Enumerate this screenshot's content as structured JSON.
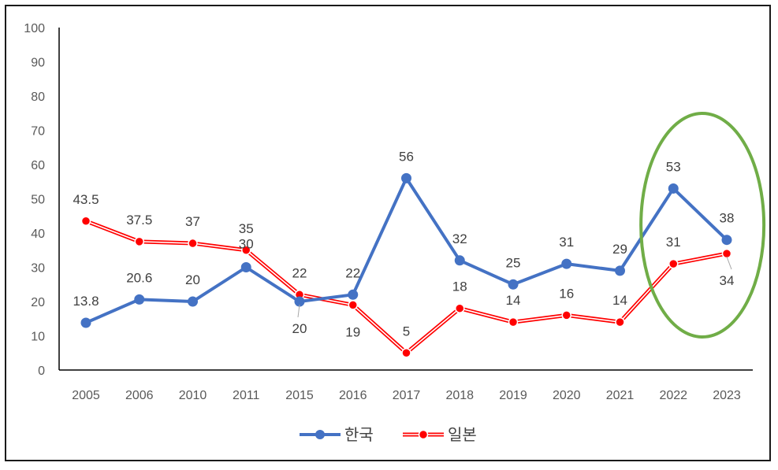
{
  "chart_data": {
    "type": "line",
    "categories": [
      "2005",
      "2006",
      "2010",
      "2011",
      "2015",
      "2016",
      "2017",
      "2018",
      "2019",
      "2020",
      "2021",
      "2022",
      "2023"
    ],
    "ylim": [
      0,
      100
    ],
    "yticks": [
      0,
      10,
      20,
      30,
      40,
      50,
      60,
      70,
      80,
      90,
      100
    ],
    "grid": false,
    "legend_position": "bottom",
    "series": [
      {
        "name": "한국",
        "values": [
          13.8,
          20.6,
          20,
          30,
          20,
          22,
          56,
          32,
          25,
          31,
          29,
          53,
          38
        ],
        "labels": [
          "13.8",
          "20.6",
          "20",
          "30",
          "20",
          "22",
          "56",
          "32",
          "25",
          "31",
          "29",
          "53",
          "38"
        ],
        "color": "#4472C4"
      },
      {
        "name": "일본",
        "values": [
          43.5,
          37.5,
          37,
          35,
          22,
          19,
          5,
          18,
          14,
          16,
          14,
          31,
          34
        ],
        "labels": [
          "43.5",
          "37.5",
          "37",
          "35",
          "22",
          "19",
          "5",
          "18",
          "14",
          "16",
          "14",
          "31",
          "34"
        ],
        "color": "#FF0000"
      }
    ],
    "highlight_ellipse": {
      "color": "#70AD47",
      "categories": [
        "2022",
        "2023"
      ]
    }
  }
}
